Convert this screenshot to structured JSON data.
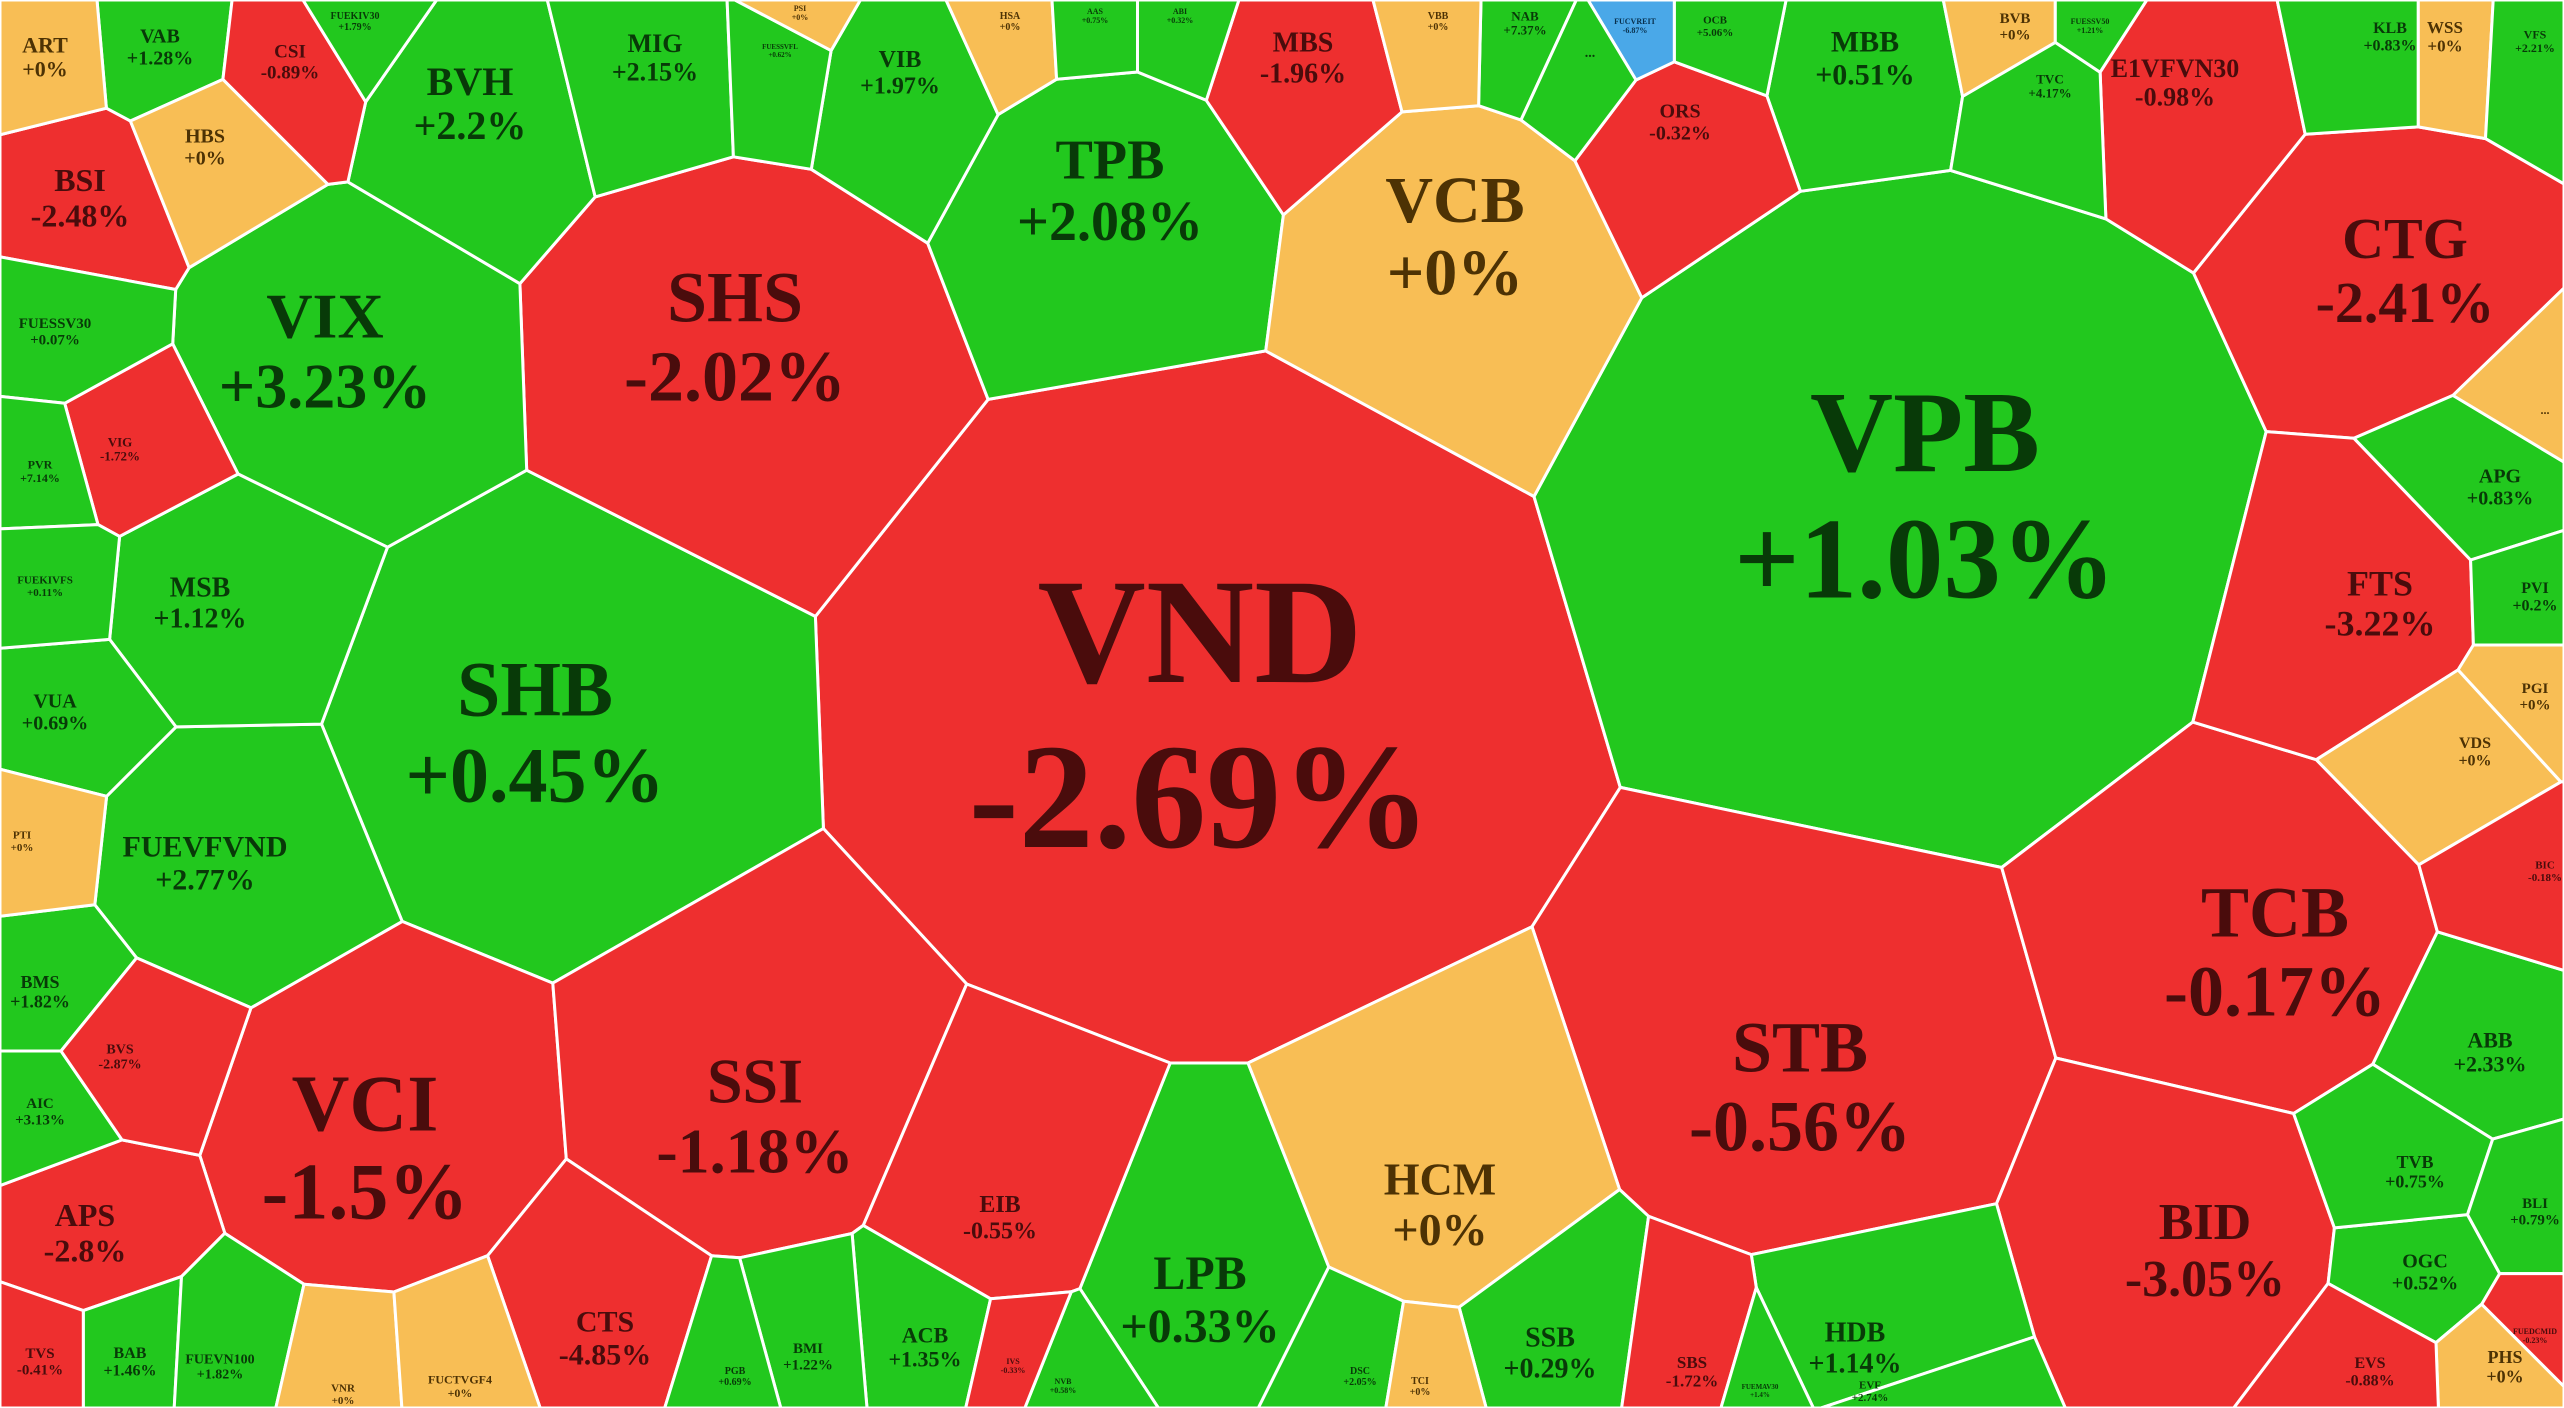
{
  "colors": {
    "up": "#22c81e",
    "down": "#ee2f2f",
    "flat": "#f8be55",
    "ceiling": "#4aa8e8",
    "up_text": "#083a08",
    "down_text": "#4a0c0c",
    "flat_text": "#4d3204"
  },
  "chart_data": {
    "type": "bubble-voronoi",
    "tickers": [
      {
        "symbol": "VND",
        "change": "-2.69%",
        "value": -2.69
      },
      {
        "symbol": "VPB",
        "change": "+1.03%",
        "value": 1.03
      },
      {
        "symbol": "SHB",
        "change": "+0.45%",
        "value": 0.45
      },
      {
        "symbol": "SHS",
        "change": "-2.02%",
        "value": -2.02
      },
      {
        "symbol": "STB",
        "change": "-0.56%",
        "value": -0.56
      },
      {
        "symbol": "VIX",
        "change": "+3.23%",
        "value": 3.23
      },
      {
        "symbol": "VCI",
        "change": "-1.5%",
        "value": -1.5
      },
      {
        "symbol": "TCB",
        "change": "-0.17%",
        "value": -0.17
      },
      {
        "symbol": "CTG",
        "change": "-2.41%",
        "value": -2.41
      },
      {
        "symbol": "SSI",
        "change": "-1.18%",
        "value": -1.18
      },
      {
        "symbol": "TPB",
        "change": "+2.08%",
        "value": 2.08
      },
      {
        "symbol": "VCB",
        "change": "+0%",
        "value": 0
      },
      {
        "symbol": "BID",
        "change": "-3.05%",
        "value": -3.05
      },
      {
        "symbol": "LPB",
        "change": "+0.33%",
        "value": 0.33
      },
      {
        "symbol": "HCM",
        "change": "+0%",
        "value": 0
      },
      {
        "symbol": "FTS",
        "change": "-3.22%",
        "value": -3.22
      },
      {
        "symbol": "FUEVFVND",
        "change": "+2.77%",
        "value": 2.77
      },
      {
        "symbol": "BVH",
        "change": "+2.2%",
        "value": 2.2
      },
      {
        "symbol": "MSB",
        "change": "+1.12%",
        "value": 1.12
      },
      {
        "symbol": "MBB",
        "change": "+0.51%",
        "value": 0.51
      },
      {
        "symbol": "MBS",
        "change": "-1.96%",
        "value": -1.96
      },
      {
        "symbol": "BSI",
        "change": "-2.48%",
        "value": -2.48
      },
      {
        "symbol": "APS",
        "change": "-2.8%",
        "value": -2.8
      },
      {
        "symbol": "CTS",
        "change": "-4.85%",
        "value": -4.85
      },
      {
        "symbol": "SSB",
        "change": "+0.29%",
        "value": 0.29
      },
      {
        "symbol": "HDB",
        "change": "+1.14%",
        "value": 1.14
      },
      {
        "symbol": "EIB",
        "change": "-0.55%",
        "value": -0.55
      },
      {
        "symbol": "E1VFVN30",
        "change": "-0.98%",
        "value": -0.98
      },
      {
        "symbol": "MIG",
        "change": "+2.15%",
        "value": 2.15
      },
      {
        "symbol": "VIB",
        "change": "+1.97%",
        "value": 1.97
      },
      {
        "symbol": "ACB",
        "change": "+1.35%",
        "value": 1.35
      },
      {
        "symbol": "ABB",
        "change": "+2.33%",
        "value": 2.33
      },
      {
        "symbol": "APG",
        "change": "+0.83%",
        "value": 0.83
      },
      {
        "symbol": "VUA",
        "change": "+0.69%",
        "value": 0.69
      },
      {
        "symbol": "BMS",
        "change": "+1.82%",
        "value": 1.82
      },
      {
        "symbol": "VAB",
        "change": "+1.28%",
        "value": 1.28
      },
      {
        "symbol": "ART",
        "change": "+0%",
        "value": 0
      },
      {
        "symbol": "CSI",
        "change": "-0.89%",
        "value": -0.89
      },
      {
        "symbol": "HBS",
        "change": "+0%",
        "value": 0
      },
      {
        "symbol": "ORS",
        "change": "-0.32%",
        "value": -0.32
      },
      {
        "symbol": "OGC",
        "change": "+0.52%",
        "value": 0.52
      },
      {
        "symbol": "TVB",
        "change": "+0.75%",
        "value": 0.75
      },
      {
        "symbol": "PVI",
        "change": "+0.2%",
        "value": 0.2
      },
      {
        "symbol": "BLI",
        "change": "+0.79%",
        "value": 0.79
      },
      {
        "symbol": "KLB",
        "change": "+0.83%",
        "value": 0.83
      },
      {
        "symbol": "WSS",
        "change": "+0%",
        "value": 0
      },
      {
        "symbol": "BVB",
        "change": "+0%",
        "value": 0
      },
      {
        "symbol": "PHS",
        "change": "+0%",
        "value": 0
      },
      {
        "symbol": "VDS",
        "change": "+0%",
        "value": 0
      },
      {
        "symbol": "PGI",
        "change": "+0%",
        "value": 0
      },
      {
        "symbol": "AIC",
        "change": "+3.13%",
        "value": 3.13
      },
      {
        "symbol": "BAB",
        "change": "+1.46%",
        "value": 1.46
      },
      {
        "symbol": "BMI",
        "change": "+1.22%",
        "value": 1.22
      },
      {
        "symbol": "SBS",
        "change": "-1.72%",
        "value": -1.72
      },
      {
        "symbol": "EVS",
        "change": "-0.88%",
        "value": -0.88
      },
      {
        "symbol": "TVS",
        "change": "-0.41%",
        "value": -0.41
      },
      {
        "symbol": "BVS",
        "change": "-2.87%",
        "value": -2.87
      },
      {
        "symbol": "VIG",
        "change": "-1.72%",
        "value": -1.72
      },
      {
        "symbol": "FUESSV30",
        "change": "+0.07%",
        "value": 0.07
      },
      {
        "symbol": "PVR",
        "change": "+7.14%",
        "value": 7.14
      },
      {
        "symbol": "FUEKIVFS",
        "change": "+0.11%",
        "value": 0.11
      },
      {
        "symbol": "PTI",
        "change": "+0%",
        "value": 0
      },
      {
        "symbol": "FUEVN100",
        "change": "+1.82%",
        "value": 1.82
      },
      {
        "symbol": "VNR",
        "change": "+0%",
        "value": 0
      },
      {
        "symbol": "FUCTVGF4",
        "change": "+0%",
        "value": 0
      },
      {
        "symbol": "PGB",
        "change": "+0.69%",
        "value": 0.69
      },
      {
        "symbol": "EVF",
        "change": "+2.74%",
        "value": 2.74
      },
      {
        "symbol": "DSC",
        "change": "+2.05%",
        "value": 2.05
      },
      {
        "symbol": "TCI",
        "change": "+0%",
        "value": 0
      },
      {
        "symbol": "TVC",
        "change": "+4.17%",
        "value": 4.17
      },
      {
        "symbol": "VFS",
        "change": "+2.21%",
        "value": 2.21
      },
      {
        "symbol": "BIC",
        "change": "-0.18%",
        "value": -0.18
      },
      {
        "symbol": "FUEKIV30",
        "change": "+1.79%",
        "value": 1.79
      },
      {
        "symbol": "NAB",
        "change": "+7.37%",
        "value": 7.37
      },
      {
        "symbol": "OCB",
        "change": "+5.06%",
        "value": 5.06
      },
      {
        "symbol": "VBB",
        "change": "+0%",
        "value": 0
      },
      {
        "symbol": "HSA",
        "change": "+0%",
        "value": 0
      },
      {
        "symbol": "FUCVREIT",
        "change": "-6.87%",
        "value": -6.87
      },
      {
        "symbol": "FUESSVFL",
        "change": "+0.62%",
        "value": 0.62
      },
      {
        "symbol": "FUESSV50",
        "change": "+1.21%",
        "value": 1.21
      },
      {
        "symbol": "FUEDCMID",
        "change": "-0.23%",
        "value": -0.23
      },
      {
        "symbol": "ABI",
        "change": "+0.32%",
        "value": 0.32
      },
      {
        "symbol": "NVB",
        "change": "+0.58%",
        "value": 0.58
      },
      {
        "symbol": "IVS",
        "change": "-0.33%",
        "value": -0.33
      },
      {
        "symbol": "AAS",
        "change": "+0.75%",
        "value": 0.75
      },
      {
        "symbol": "PSI",
        "change": "+0%",
        "value": 0
      },
      {
        "symbol": "FUEMAV30",
        "change": "+1.4%",
        "value": 1.4
      },
      {
        "symbol": "...",
        "change": "",
        "value": 1.0
      },
      {
        "symbol": "...",
        "change": "",
        "value": 0
      }
    ]
  }
}
